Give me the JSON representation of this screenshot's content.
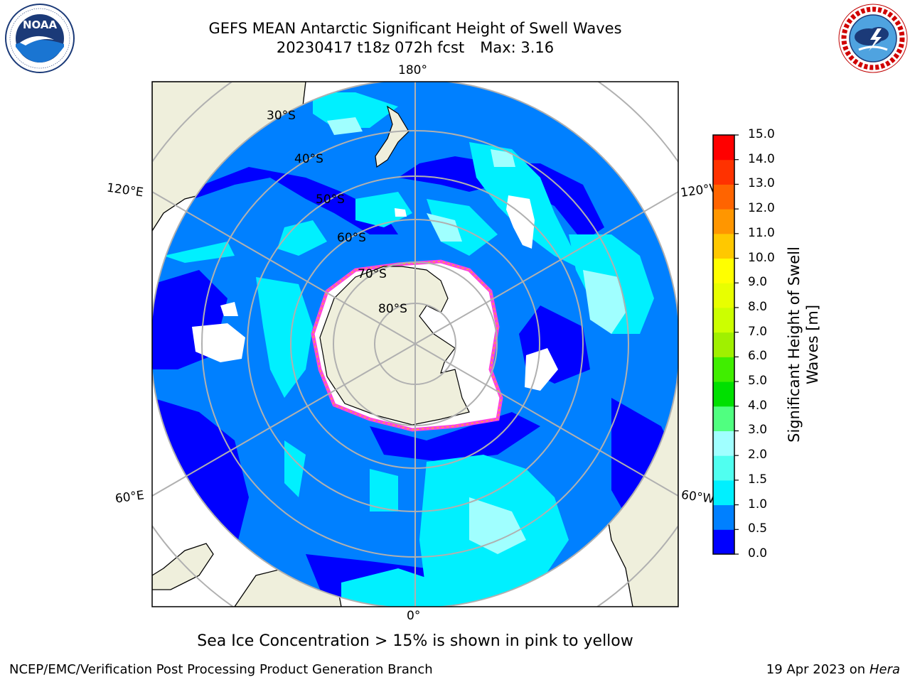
{
  "header": {
    "title_line1": "GEFS MEAN Antarctic Significant Height of Swell Waves",
    "title_date": "20230417 t18z 072h fcst",
    "title_max": "Max: 3.16"
  },
  "logos": {
    "left_name": "noaa-logo",
    "left_text": "NOAA",
    "left_ring_text": "NATIONAL OCEANIC AND ATMOSPHERIC ADMINISTRATION · U.S. DEPARTMENT OF COMMERCE",
    "right_name": "nws-logo",
    "right_ring_text": "NATIONAL WEATHER SERVICE"
  },
  "map": {
    "projection": "south-polar-stereographic",
    "longitude_labels": {
      "top": "180°",
      "bottom": "0°",
      "left_upper": "120°E",
      "left_lower": "60°E",
      "right_upper": "120°W",
      "right_lower": "60°W"
    },
    "latitude_labels": [
      "30°S",
      "40°S",
      "50°S",
      "60°S",
      "70°S",
      "80°S"
    ],
    "colors": {
      "land": "#efefdc",
      "ice_edge": "#ff44dd",
      "missing": "#ffffff",
      "grid": "#b0b0b0"
    }
  },
  "colorbar": {
    "label_line1": "Significant Height of Swell",
    "label_line2": "Waves [m]",
    "ticks": [
      "0.0",
      "0.5",
      "1.0",
      "1.5",
      "2.0",
      "3.0",
      "4.0",
      "5.0",
      "6.0",
      "7.0",
      "8.0",
      "9.0",
      "10.0",
      "11.0",
      "12.0",
      "13.0",
      "14.0",
      "15.0"
    ],
    "colors": [
      "#0000ff",
      "#0080ff",
      "#00f0ff",
      "#50fff0",
      "#a0ffff",
      "#50ff80",
      "#00e000",
      "#40ee00",
      "#a0f000",
      "#ccff00",
      "#e8ff00",
      "#ffff00",
      "#ffc800",
      "#ff9600",
      "#ff6400",
      "#ff3200",
      "#ff0000"
    ]
  },
  "caption": "Sea Ice Concentration > 15% is shown in pink to yellow",
  "footer": {
    "left": "NCEP/EMC/Verification Post Processing Product Generation Branch",
    "right_prefix": "19 Apr 2023 on ",
    "right_host": "Hera"
  }
}
